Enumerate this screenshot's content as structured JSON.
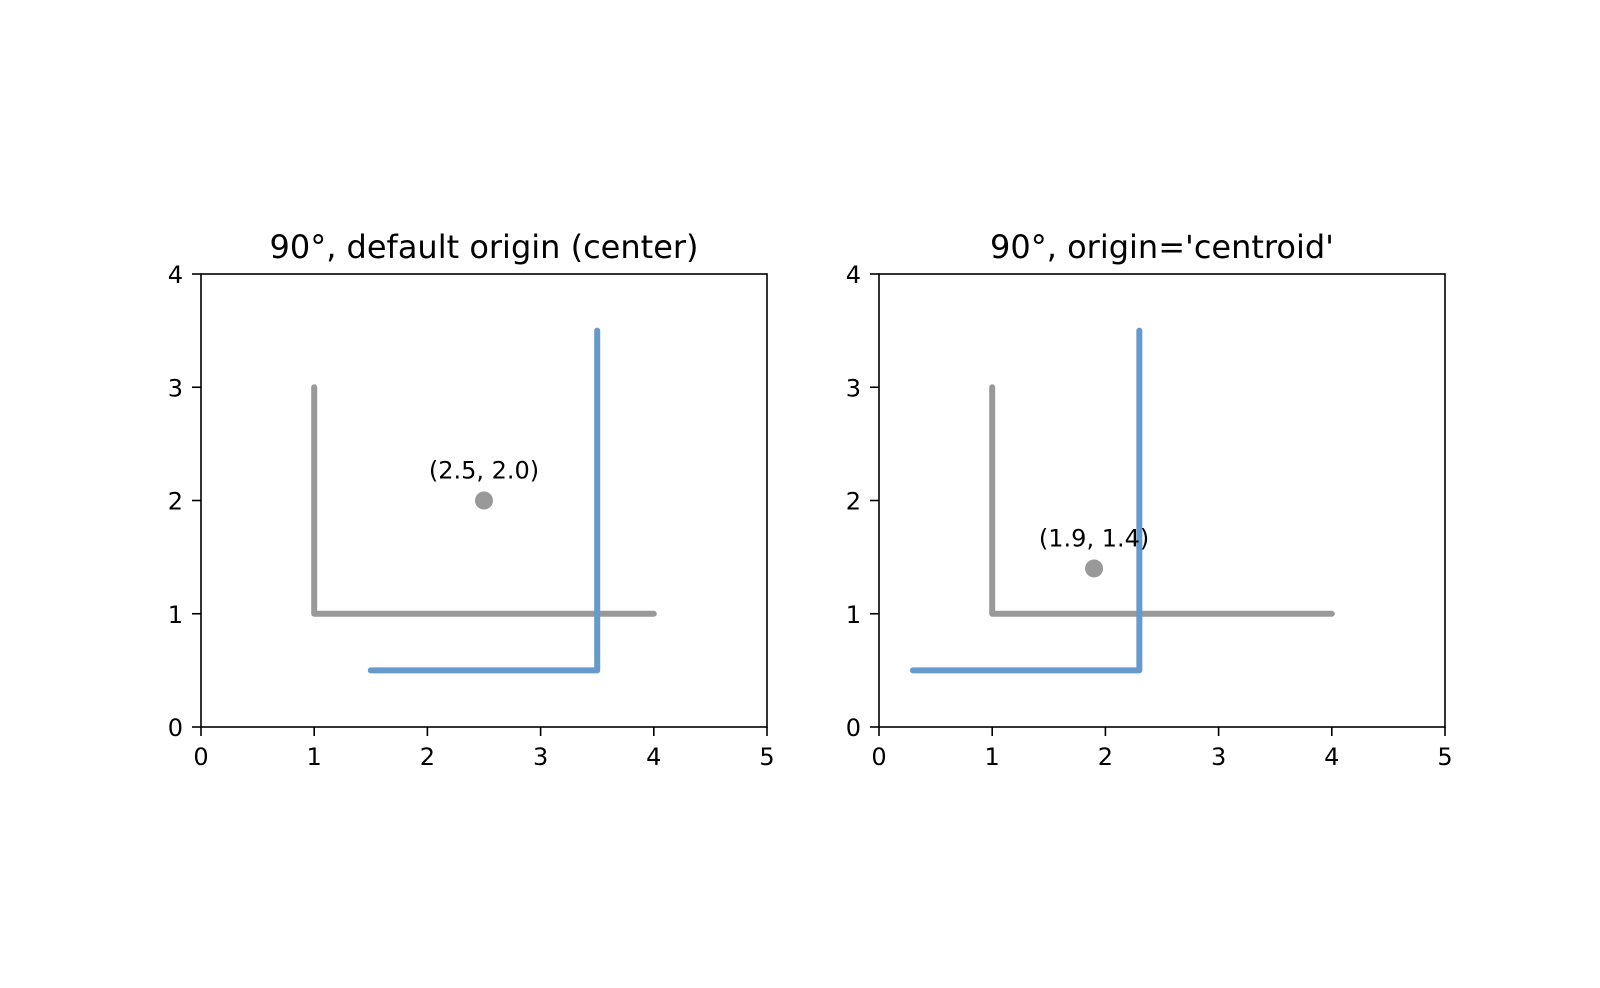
{
  "chart_data": [
    {
      "type": "line",
      "title": "90°, default origin (center)",
      "xlabel": "",
      "ylabel": "",
      "xlim": [
        0,
        5
      ],
      "ylim": [
        0,
        4
      ],
      "xticks": [
        0,
        1,
        2,
        3,
        4,
        5
      ],
      "yticks": [
        0,
        1,
        2,
        3,
        4
      ],
      "grid": false,
      "series": [
        {
          "points": [
            [
              1,
              3
            ],
            [
              1,
              1
            ],
            [
              4,
              1
            ]
          ],
          "color": "#999999"
        },
        {
          "points": [
            [
              1.5,
              0.5
            ],
            [
              3.5,
              0.5
            ],
            [
              3.5,
              3.5
            ]
          ],
          "color": "#6699cc"
        }
      ],
      "marker": {
        "x": 2.5,
        "y": 2.0,
        "color": "#999999"
      },
      "annotation": {
        "text": "(2.5, 2.0)",
        "x": 2.5,
        "y": 2.0
      }
    },
    {
      "type": "line",
      "title": "90°, origin='centroid'",
      "xlabel": "",
      "ylabel": "",
      "xlim": [
        0,
        5
      ],
      "ylim": [
        0,
        4
      ],
      "xticks": [
        0,
        1,
        2,
        3,
        4,
        5
      ],
      "yticks": [
        0,
        1,
        2,
        3,
        4
      ],
      "grid": false,
      "series": [
        {
          "points": [
            [
              1,
              3
            ],
            [
              1,
              1
            ],
            [
              4,
              1
            ]
          ],
          "color": "#999999"
        },
        {
          "points": [
            [
              0.3,
              0.5
            ],
            [
              2.3,
              0.5
            ],
            [
              2.3,
              3.5
            ]
          ],
          "color": "#6699cc"
        }
      ],
      "marker": {
        "x": 1.9,
        "y": 1.4,
        "color": "#999999"
      },
      "annotation": {
        "text": "(1.9, 1.4)",
        "x": 1.9,
        "y": 1.4
      }
    }
  ]
}
